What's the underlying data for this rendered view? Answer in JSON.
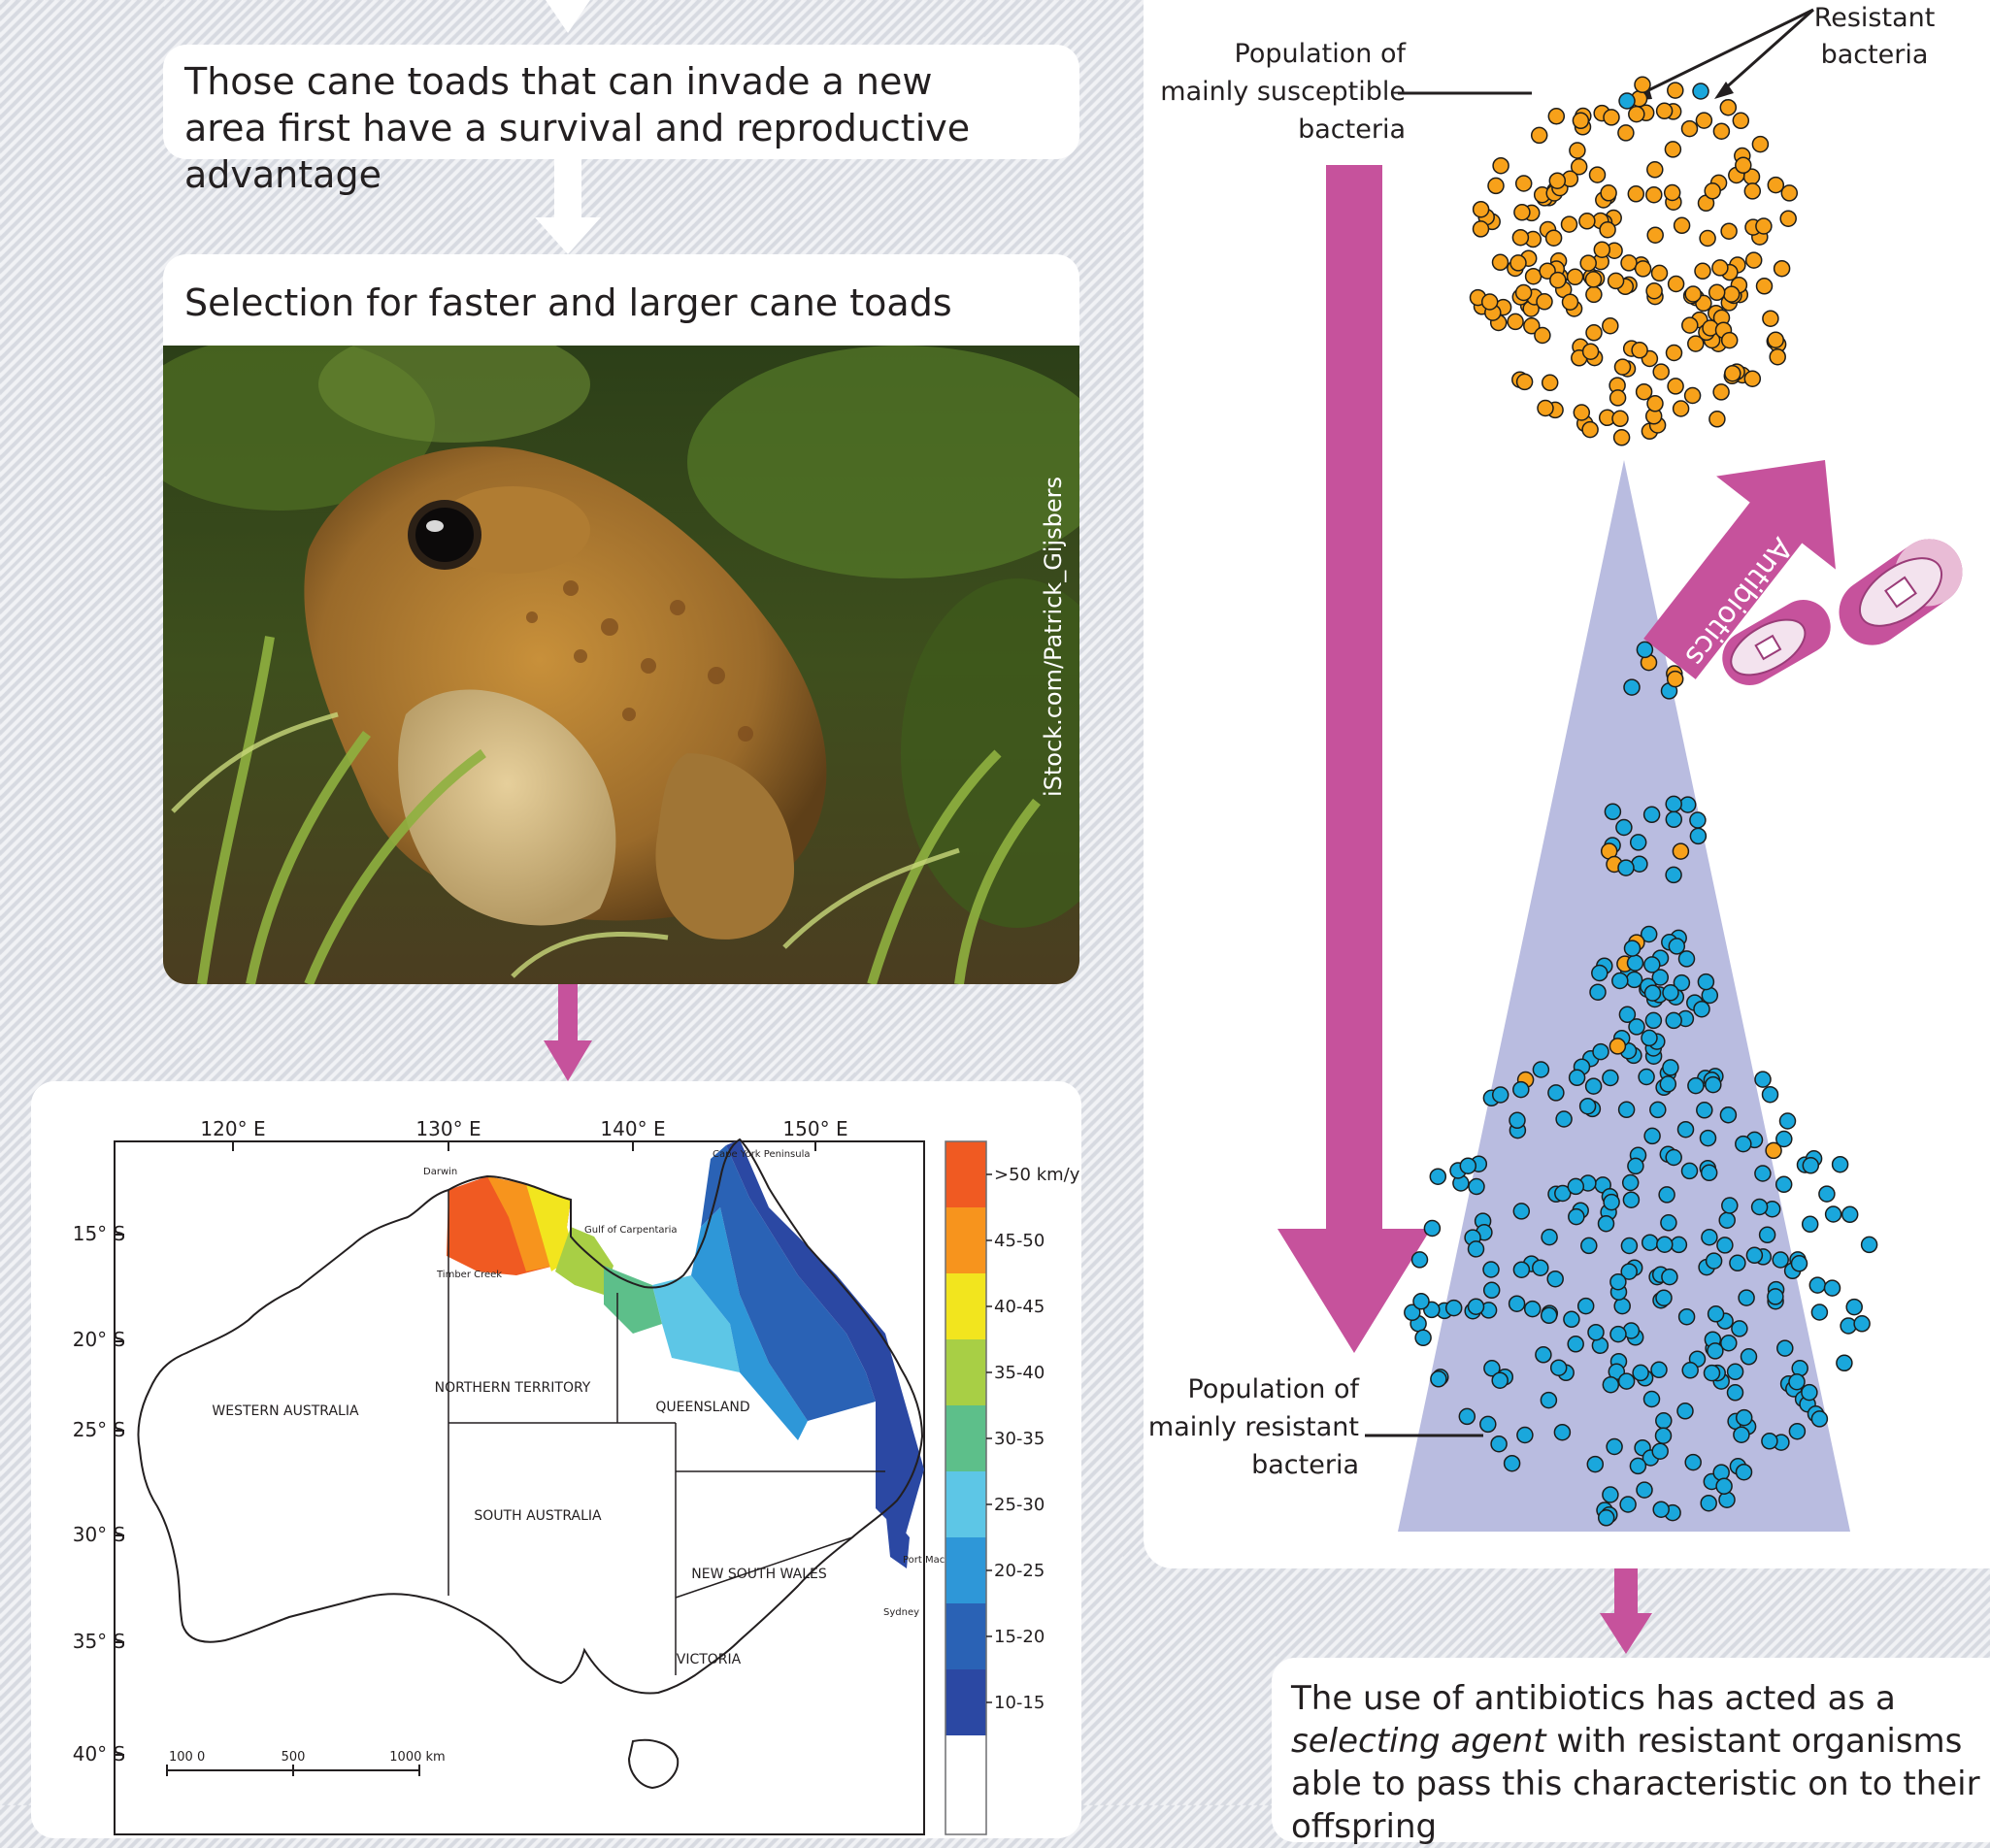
{
  "left": {
    "step1_text": "Those cane toads that can invade a new area first have a survival and reproductive advantage",
    "step2_text": "Selection for faster and larger cane toads",
    "photo_credit": "iStock.com/Patrick_Gijsbers",
    "map": {
      "lon_labels": [
        "120° E",
        "130° E",
        "140° E",
        "150° E"
      ],
      "lat_labels": [
        "15° S",
        "20° S",
        "25° S",
        "30° S",
        "35° S",
        "40° S"
      ],
      "regions": [
        "WESTERN AUSTRALIA",
        "NORTHERN TERRITORY",
        "QUEENSLAND",
        "SOUTH AUSTRALIA",
        "NEW SOUTH WALES",
        "VICTORIA"
      ],
      "places": {
        "darwin": "Darwin",
        "gulf": "Gulf of Carpentaria",
        "cape_york": "Cape York Peninsula",
        "timber_creek": "Timber Creek",
        "port_macquarie": "Port Macquarie",
        "sydney": "Sydney"
      },
      "legend": [
        {
          "label": ">50 km/yr",
          "color": "#f05a22"
        },
        {
          "label": "45-50",
          "color": "#f7941d"
        },
        {
          "label": "40-45",
          "color": "#f2e51e"
        },
        {
          "label": "35-40",
          "color": "#a8cf45"
        },
        {
          "label": "30-35",
          "color": "#5dbf8a"
        },
        {
          "label": "25-30",
          "color": "#5dc6e6"
        },
        {
          "label": "20-25",
          "color": "#2e97d8"
        },
        {
          "label": "15-20",
          "color": "#2a62b5"
        },
        {
          "label": "10-15",
          "color": "#2b48a3"
        },
        {
          "label": "",
          "color": "#ffffff"
        }
      ],
      "scale": {
        "start": "100 0",
        "mid": "500",
        "end": "1000 km"
      }
    }
  },
  "right": {
    "label_resistant": "Resistant bacteria",
    "label_susceptible_pop": "Population of mainly susceptible bacteria",
    "label_antibiotics": "Antibiotics",
    "label_resistant_pop": "Population of mainly resistant bacteria",
    "conclusion": {
      "part1": "The use of antibiotics has acted as a ",
      "italic1": "selecting agent",
      "part2": " with resistant organisms able to pass this characteristic on to their offspring"
    },
    "colors": {
      "susceptible": "#f7a11a",
      "resistant": "#1aa7dc",
      "arrow": "#c6529c",
      "cone": "#b9bce0"
    }
  }
}
